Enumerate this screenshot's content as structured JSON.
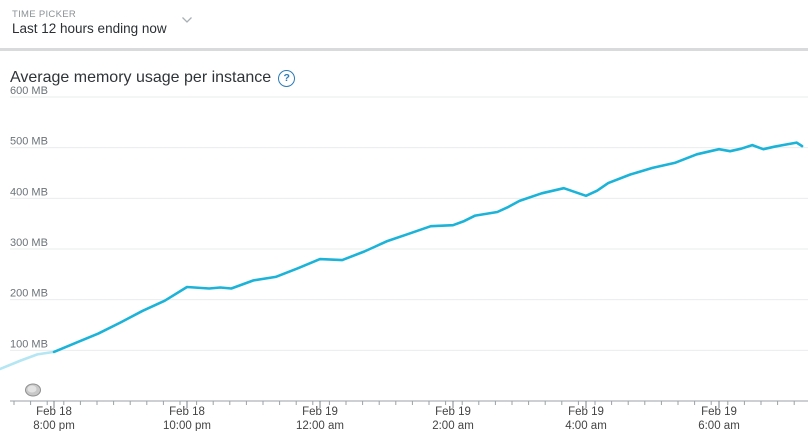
{
  "time_picker": {
    "label": "TIME PICKER",
    "value": "Last 12 hours ending now",
    "icon": "chevron-down-icon"
  },
  "chart": {
    "title": "Average memory usage per instance",
    "help_icon_glyph": "?",
    "line_color": "#1bb3d8",
    "faded_line_color": "#b5e6f3"
  },
  "chart_data": {
    "type": "line",
    "title": "Average memory usage per instance",
    "xlabel": "",
    "ylabel": "",
    "y_unit": "MB",
    "ylim": [
      0,
      600
    ],
    "ytick_labels": [
      "100 MB",
      "200 MB",
      "300 MB",
      "400 MB",
      "500 MB",
      "600 MB"
    ],
    "xtick_labels": [
      {
        "date": "Feb 18",
        "time": "8:00 pm"
      },
      {
        "date": "Feb 18",
        "time": "10:00 pm"
      },
      {
        "date": "Feb 19",
        "time": "12:00 am"
      },
      {
        "date": "Feb 19",
        "time": "2:00 am"
      },
      {
        "date": "Feb 19",
        "time": "4:00 am"
      },
      {
        "date": "Feb 19",
        "time": "6:00 am"
      }
    ],
    "grid": true,
    "series": [
      {
        "x": [
          "Feb 18 7:10 pm",
          "Feb 18 7:30 pm",
          "Feb 18 7:45 pm",
          "Feb 18 8:00 pm",
          "Feb 18 8:20 pm",
          "Feb 18 8:40 pm",
          "Feb 18 9:00 pm",
          "Feb 18 9:20 pm",
          "Feb 18 9:40 pm",
          "Feb 18 10:00 pm",
          "Feb 18 10:20 pm",
          "Feb 18 10:30 pm",
          "Feb 18 10:40 pm",
          "Feb 18 11:00 pm",
          "Feb 18 11:20 pm",
          "Feb 18 11:40 pm",
          "Feb 19 12:00 am",
          "Feb 19 12:20 am",
          "Feb 19 12:40 am",
          "Feb 19 12:50 am",
          "Feb 19 1:00 am",
          "Feb 19 1:20 am",
          "Feb 19 1:40 am",
          "Feb 19 2:00 am",
          "Feb 19 2:10 am",
          "Feb 19 2:20 am",
          "Feb 19 2:40 am",
          "Feb 19 2:50 am",
          "Feb 19 3:00 am",
          "Feb 19 3:20 am",
          "Feb 19 3:40 am",
          "Feb 19 4:00 am",
          "Feb 19 4:10 am",
          "Feb 19 4:20 am",
          "Feb 19 4:40 am",
          "Feb 19 5:00 am",
          "Feb 19 5:20 am",
          "Feb 19 5:40 am",
          "Feb 19 6:00 am",
          "Feb 19 6:10 am",
          "Feb 19 6:20 am",
          "Feb 19 6:30 am",
          "Feb 19 6:40 am",
          "Feb 19 6:50 am",
          "Feb 19 7:00 am",
          "Feb 19 7:10 am",
          "Feb 19 7:15 am"
        ],
        "values": [
          62,
          80,
          92,
          97,
          115,
          133,
          155,
          178,
          198,
          225,
          222,
          224,
          222,
          238,
          245,
          262,
          280,
          278,
          295,
          305,
          315,
          330,
          345,
          347,
          355,
          366,
          373,
          383,
          395,
          410,
          420,
          405,
          415,
          430,
          447,
          460,
          470,
          487,
          497,
          493,
          498,
          505,
          497,
          502,
          506,
          510,
          503
        ],
        "faded_until_index": 2
      }
    ]
  }
}
